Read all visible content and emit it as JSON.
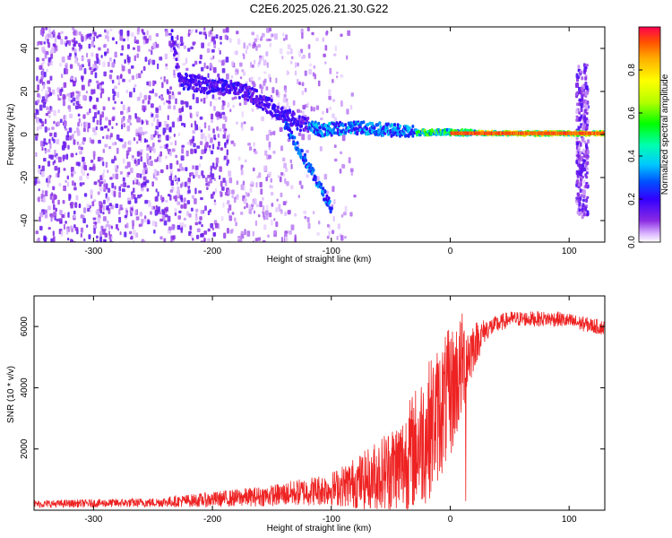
{
  "title": "C2E6.2025.026.21.30.G22",
  "chart_data": [
    {
      "type": "heatmap",
      "xlabel": "Height of straight line (km)",
      "ylabel": "Frequency (Hz)",
      "xlim": [
        -350,
        130
      ],
      "ylim": [
        -50,
        50
      ],
      "xticks": [
        -300,
        -200,
        -100,
        0,
        100
      ],
      "yticks": [
        -40,
        -20,
        0,
        20,
        40
      ],
      "colorbar": {
        "label": "Normalized spectral amplitude",
        "range": [
          0.0,
          1.0
        ],
        "ticks": [
          "0.0",
          "0.2",
          "0.4",
          "0.6",
          "0.8"
        ],
        "colors": [
          "#ffffff",
          "#d9b3ff",
          "#8a2be2",
          "#3300ff",
          "#0050ff",
          "#00c8ff",
          "#00ffb0",
          "#00ff00",
          "#b4ff00",
          "#ffff00",
          "#ffb000",
          "#ff5000",
          "#ff0050"
        ]
      },
      "signal_track": [
        {
          "x": -235,
          "f": 45
        },
        {
          "x": -228,
          "f": 25
        },
        {
          "x": -210,
          "f": 23
        },
        {
          "x": -190,
          "f": 22
        },
        {
          "x": -170,
          "f": 19
        },
        {
          "x": -150,
          "f": 12
        },
        {
          "x": -130,
          "f": 6
        },
        {
          "x": -110,
          "f": 2
        },
        {
          "x": -90,
          "f": 3
        },
        {
          "x": -70,
          "f": 3
        },
        {
          "x": -50,
          "f": 2
        },
        {
          "x": -30,
          "f": 1
        },
        {
          "x": 0,
          "f": 1
        },
        {
          "x": 50,
          "f": 0.5
        },
        {
          "x": 100,
          "f": 0.5
        },
        {
          "x": 130,
          "f": 0.5
        }
      ],
      "secondary_track": [
        {
          "x": -140,
          "f": 5
        },
        {
          "x": -130,
          "f": -5
        },
        {
          "x": -120,
          "f": -15
        },
        {
          "x": -110,
          "f": -25
        },
        {
          "x": -100,
          "f": -35
        }
      ],
      "noise_extent_x": [
        -350,
        -80
      ],
      "vertical_burst_x": [
        105,
        115
      ]
    },
    {
      "type": "line",
      "xlabel": "Height of straight line (km)",
      "ylabel": "SNR (10 * v/v)",
      "xlim": [
        -350,
        130
      ],
      "ylim": [
        0,
        7000
      ],
      "xticks": [
        -300,
        -200,
        -100,
        0,
        100
      ],
      "yticks": [
        2000,
        4000,
        6000
      ],
      "color": "#ee2222",
      "envelope": [
        {
          "x": -350,
          "mean": 200,
          "amp": 120
        },
        {
          "x": -250,
          "mean": 250,
          "amp": 150
        },
        {
          "x": -200,
          "mean": 350,
          "amp": 250
        },
        {
          "x": -150,
          "mean": 480,
          "amp": 350
        },
        {
          "x": -100,
          "mean": 700,
          "amp": 550
        },
        {
          "x": -70,
          "mean": 1000,
          "amp": 1000
        },
        {
          "x": -40,
          "mean": 1500,
          "amp": 1700
        },
        {
          "x": -20,
          "mean": 2500,
          "amp": 2300
        },
        {
          "x": 0,
          "mean": 3800,
          "amp": 2200
        },
        {
          "x": 10,
          "mean": 4700,
          "amp": 1800
        },
        {
          "x": 20,
          "mean": 5400,
          "amp": 800
        },
        {
          "x": 30,
          "mean": 5900,
          "amp": 350
        },
        {
          "x": 50,
          "mean": 6250,
          "amp": 250
        },
        {
          "x": 90,
          "mean": 6250,
          "amp": 250
        },
        {
          "x": 130,
          "mean": 5950,
          "amp": 250
        }
      ],
      "spikes": [
        {
          "x": 13,
          "y": 7000
        },
        {
          "x": 13,
          "y": 300
        }
      ]
    }
  ]
}
